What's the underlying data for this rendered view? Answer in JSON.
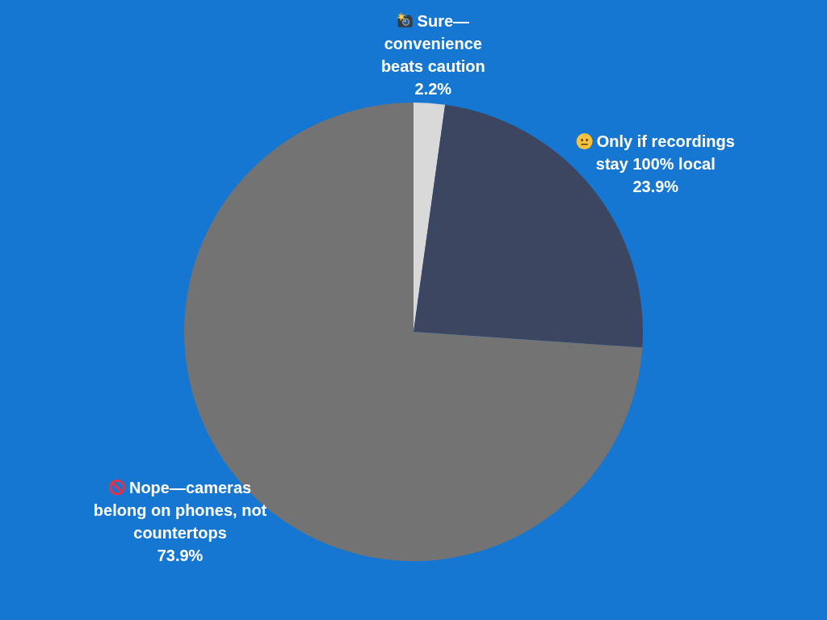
{
  "chart_data": {
    "type": "pie",
    "categories": [
      "Sure—convenience beats caution",
      "Only if recordings stay 100% local",
      "Nope—cameras belong on phones, not countertops"
    ],
    "values": [
      2.2,
      23.9,
      73.9
    ],
    "colors": [
      "#d9d9d9",
      "#3d4661",
      "#737373"
    ],
    "value_labels": [
      "2.2%",
      "23.9%",
      "73.9%"
    ]
  }
}
